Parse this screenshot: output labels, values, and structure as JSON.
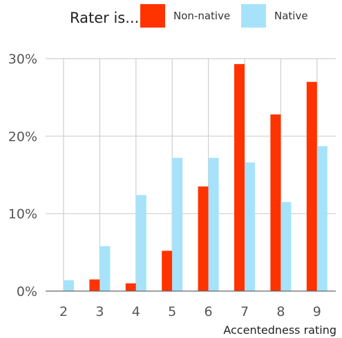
{
  "legend": {
    "title": "Rater is...",
    "items": [
      {
        "label": "Non-native",
        "color": "#ff3300"
      },
      {
        "label": "Native",
        "color": "#a6e3fb"
      }
    ]
  },
  "chart_data": {
    "type": "bar",
    "categories": [
      "2",
      "3",
      "4",
      "5",
      "6",
      "7",
      "8",
      "9"
    ],
    "series": [
      {
        "name": "Non-native",
        "color": "#ff3300",
        "values": [
          0,
          1.5,
          1.0,
          5.2,
          13.5,
          29.3,
          22.8,
          27.0
        ]
      },
      {
        "name": "Native",
        "color": "#a6e3fb",
        "values": [
          1.4,
          5.8,
          12.4,
          17.2,
          17.2,
          16.6,
          11.5,
          18.7
        ]
      }
    ],
    "xlabel": "Accentedness rating",
    "ylabel": "",
    "ylim": [
      0,
      30
    ],
    "yticks": [
      0,
      10,
      20,
      30
    ],
    "ytick_labels": [
      "0%",
      "10%",
      "20%",
      "30%"
    ],
    "grid": true,
    "legend_position": "top"
  }
}
